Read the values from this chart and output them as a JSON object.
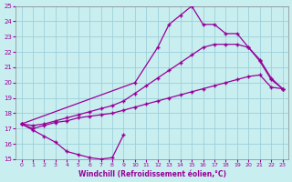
{
  "xlabel": "Windchill (Refroidissement éolien,°C)",
  "xlim": [
    -0.5,
    23.5
  ],
  "ylim": [
    15,
    25
  ],
  "xticks": [
    0,
    1,
    2,
    3,
    4,
    5,
    6,
    7,
    8,
    9,
    10,
    11,
    12,
    13,
    14,
    15,
    16,
    17,
    18,
    19,
    20,
    21,
    22,
    23
  ],
  "yticks": [
    15,
    16,
    17,
    18,
    19,
    20,
    21,
    22,
    23,
    24,
    25
  ],
  "background_color": "#c8eef0",
  "grid_color": "#9ecfda",
  "line_color": "#990099",
  "line1_x": [
    0,
    1,
    2,
    3,
    4,
    5,
    6,
    7,
    8,
    9
  ],
  "line1_y": [
    17.3,
    16.9,
    16.5,
    16.1,
    15.5,
    15.3,
    15.1,
    15.0,
    15.1,
    16.6
  ],
  "line2_x": [
    0,
    1,
    2,
    3,
    4,
    5,
    6,
    7,
    8,
    9,
    10,
    11,
    12,
    13,
    14,
    15,
    16,
    17,
    18,
    19,
    20,
    21,
    22,
    23
  ],
  "line2_y": [
    17.3,
    17.0,
    17.2,
    17.4,
    17.5,
    17.7,
    17.8,
    17.9,
    18.0,
    18.2,
    18.4,
    18.6,
    18.8,
    19.0,
    19.2,
    19.4,
    19.6,
    19.8,
    20.0,
    20.2,
    20.4,
    20.5,
    19.7,
    19.6
  ],
  "line3_x": [
    0,
    1,
    2,
    3,
    4,
    5,
    6,
    7,
    8,
    9,
    10,
    11,
    12,
    13,
    14,
    15,
    16,
    17,
    18,
    19,
    20,
    21,
    22,
    23
  ],
  "line3_y": [
    17.3,
    17.2,
    17.3,
    17.5,
    17.7,
    17.9,
    18.1,
    18.3,
    18.5,
    18.8,
    19.3,
    19.8,
    20.3,
    20.8,
    21.3,
    21.8,
    22.3,
    22.5,
    22.5,
    22.5,
    22.3,
    21.4,
    20.2,
    19.6
  ],
  "line4_x": [
    0,
    10,
    12,
    13,
    14,
    15,
    16,
    17,
    18,
    19,
    20,
    21,
    22,
    23
  ],
  "line4_y": [
    17.3,
    20.0,
    22.3,
    23.8,
    24.4,
    25.0,
    23.8,
    23.8,
    23.2,
    23.2,
    22.3,
    21.5,
    20.3,
    19.6
  ]
}
